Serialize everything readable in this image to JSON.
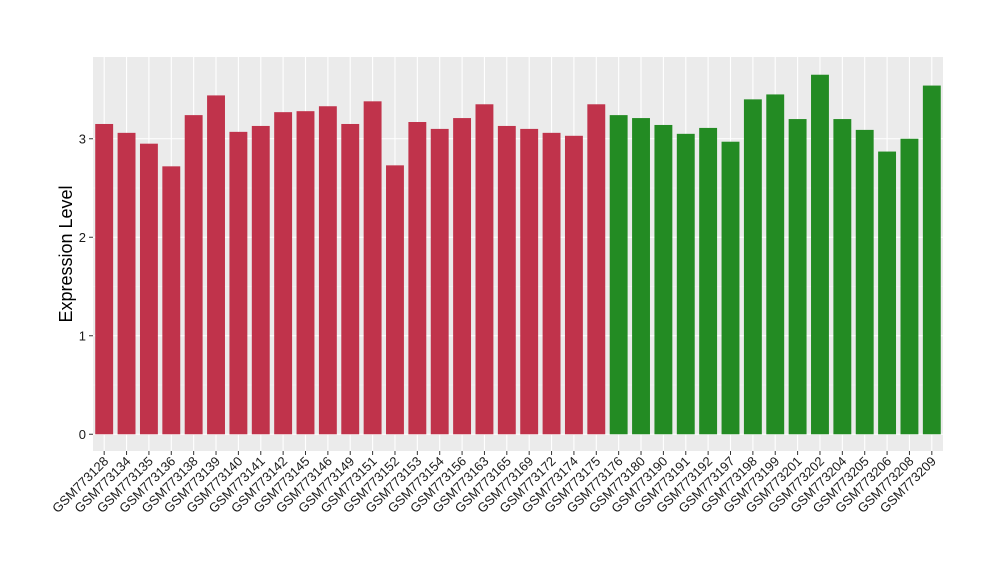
{
  "chart_data": {
    "type": "bar",
    "title": "",
    "xlabel": "",
    "ylabel": "Expression Level",
    "ylim": [
      -0.17,
      3.83
    ],
    "yticks": [
      0,
      1,
      2,
      3
    ],
    "grid": true,
    "legend": "none",
    "colors": {
      "panel_background": "#ebebeb",
      "grid_major": "#ffffff",
      "grid_minor": "#f5f5f5",
      "group_1": "#c0334b",
      "group_2": "#238b23"
    },
    "categories": [
      "GSM773128",
      "GSM773134",
      "GSM773135",
      "GSM773136",
      "GSM773138",
      "GSM773139",
      "GSM773140",
      "GSM773141",
      "GSM773142",
      "GSM773145",
      "GSM773146",
      "GSM773149",
      "GSM773151",
      "GSM773152",
      "GSM773153",
      "GSM773154",
      "GSM773156",
      "GSM773163",
      "GSM773165",
      "GSM773169",
      "GSM773172",
      "GSM773174",
      "GSM773175",
      "GSM773176",
      "GSM773180",
      "GSM773190",
      "GSM773191",
      "GSM773192",
      "GSM773197",
      "GSM773198",
      "GSM773199",
      "GSM773201",
      "GSM773202",
      "GSM773204",
      "GSM773205",
      "GSM773206",
      "GSM773208",
      "GSM773209"
    ],
    "values": [
      3.15,
      3.06,
      2.95,
      2.72,
      3.24,
      3.44,
      3.07,
      3.13,
      3.27,
      3.28,
      3.33,
      3.15,
      3.38,
      2.73,
      3.17,
      3.1,
      3.21,
      3.35,
      3.13,
      3.1,
      3.06,
      3.03,
      3.35,
      3.24,
      3.21,
      3.14,
      3.05,
      3.11,
      2.97,
      3.4,
      3.45,
      3.2,
      3.65,
      3.2,
      3.09,
      2.87,
      3.0,
      3.54
    ],
    "groups": [
      1,
      1,
      1,
      1,
      1,
      1,
      1,
      1,
      1,
      1,
      1,
      1,
      1,
      1,
      1,
      1,
      1,
      1,
      1,
      1,
      1,
      1,
      1,
      2,
      2,
      2,
      2,
      2,
      2,
      2,
      2,
      2,
      2,
      2,
      2,
      2,
      2,
      2
    ]
  }
}
